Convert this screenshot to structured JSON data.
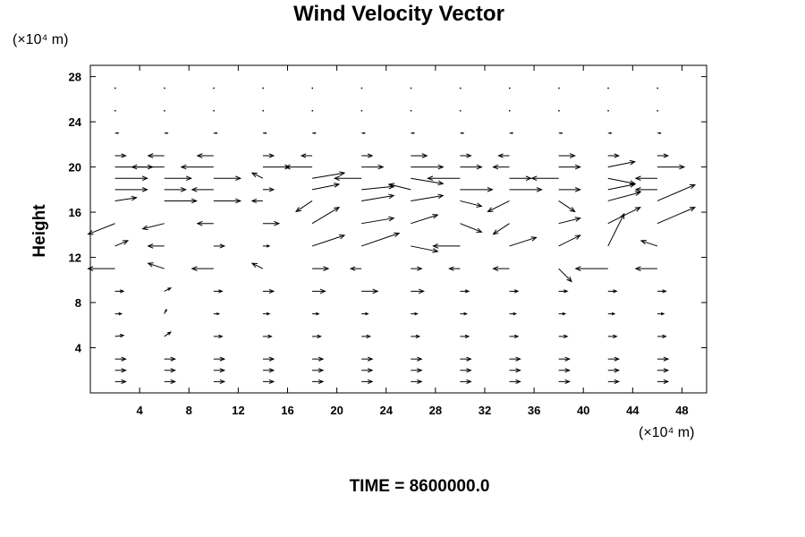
{
  "chart_data": {
    "type": "vector-field",
    "title": "Wind Velocity Vector",
    "xlabel": "",
    "ylabel": "Height",
    "x_unit_label": "(×10⁴ m)",
    "y_unit_label": "(×10⁴ m)",
    "xlim": [
      0,
      50
    ],
    "ylim": [
      0,
      29
    ],
    "x_ticks": [
      4,
      8,
      12,
      16,
      20,
      24,
      28,
      32,
      36,
      40,
      44,
      48
    ],
    "y_ticks": [
      4,
      8,
      12,
      16,
      20,
      24,
      28
    ],
    "x_tick_labels": [
      "4",
      "8",
      "12",
      "16",
      "20",
      "24",
      "28",
      "32",
      "36",
      "40",
      "44",
      "48"
    ],
    "y_tick_labels": [
      "4",
      "8",
      "12",
      "16",
      "20",
      "24",
      "28"
    ],
    "grid": false,
    "footer": "TIME = 8600000.0",
    "vectors": [
      {
        "x": 2,
        "y": 1,
        "u": 1.0,
        "v": 0
      },
      {
        "x": 6,
        "y": 1,
        "u": 1.0,
        "v": 0
      },
      {
        "x": 10,
        "y": 1,
        "u": 1.0,
        "v": 0
      },
      {
        "x": 14,
        "y": 1,
        "u": 1.0,
        "v": 0
      },
      {
        "x": 18,
        "y": 1,
        "u": 1.0,
        "v": 0
      },
      {
        "x": 22,
        "y": 1,
        "u": 1.0,
        "v": 0
      },
      {
        "x": 26,
        "y": 1,
        "u": 1.0,
        "v": 0
      },
      {
        "x": 30,
        "y": 1,
        "u": 1.0,
        "v": 0
      },
      {
        "x": 34,
        "y": 1,
        "u": 1.0,
        "v": 0
      },
      {
        "x": 38,
        "y": 1,
        "u": 1.0,
        "v": 0
      },
      {
        "x": 42,
        "y": 1,
        "u": 1.0,
        "v": 0
      },
      {
        "x": 46,
        "y": 1,
        "u": 1.0,
        "v": 0
      },
      {
        "x": 2,
        "y": 2,
        "u": 1.0,
        "v": 0
      },
      {
        "x": 6,
        "y": 2,
        "u": 1.0,
        "v": 0
      },
      {
        "x": 10,
        "y": 2,
        "u": 1.0,
        "v": 0
      },
      {
        "x": 14,
        "y": 2,
        "u": 1.0,
        "v": 0
      },
      {
        "x": 18,
        "y": 2,
        "u": 1.0,
        "v": 0
      },
      {
        "x": 22,
        "y": 2,
        "u": 1.0,
        "v": 0
      },
      {
        "x": 26,
        "y": 2,
        "u": 1.0,
        "v": 0
      },
      {
        "x": 30,
        "y": 2,
        "u": 1.0,
        "v": 0
      },
      {
        "x": 34,
        "y": 2,
        "u": 1.0,
        "v": 0
      },
      {
        "x": 38,
        "y": 2,
        "u": 1.0,
        "v": 0
      },
      {
        "x": 42,
        "y": 2,
        "u": 1.0,
        "v": 0
      },
      {
        "x": 46,
        "y": 2,
        "u": 1.0,
        "v": 0
      },
      {
        "x": 2,
        "y": 3,
        "u": 1.0,
        "v": 0
      },
      {
        "x": 6,
        "y": 3,
        "u": 1.0,
        "v": 0
      },
      {
        "x": 10,
        "y": 3,
        "u": 1.0,
        "v": 0
      },
      {
        "x": 14,
        "y": 3,
        "u": 1.0,
        "v": 0
      },
      {
        "x": 18,
        "y": 3,
        "u": 1.0,
        "v": 0
      },
      {
        "x": 22,
        "y": 3,
        "u": 1.0,
        "v": 0
      },
      {
        "x": 26,
        "y": 3,
        "u": 1.0,
        "v": 0
      },
      {
        "x": 30,
        "y": 3,
        "u": 1.0,
        "v": 0
      },
      {
        "x": 34,
        "y": 3,
        "u": 1.0,
        "v": 0
      },
      {
        "x": 38,
        "y": 3,
        "u": 1.0,
        "v": 0
      },
      {
        "x": 42,
        "y": 3,
        "u": 1.0,
        "v": 0
      },
      {
        "x": 46,
        "y": 3,
        "u": 1.0,
        "v": 0
      },
      {
        "x": 2,
        "y": 5,
        "u": 0.8,
        "v": 0.1
      },
      {
        "x": 6,
        "y": 5,
        "u": 0.6,
        "v": 0.4
      },
      {
        "x": 10,
        "y": 5,
        "u": 0.8,
        "v": 0
      },
      {
        "x": 14,
        "y": 5,
        "u": 0.8,
        "v": 0
      },
      {
        "x": 18,
        "y": 5,
        "u": 0.8,
        "v": 0
      },
      {
        "x": 22,
        "y": 5,
        "u": 0.8,
        "v": 0
      },
      {
        "x": 26,
        "y": 5,
        "u": 0.8,
        "v": 0
      },
      {
        "x": 30,
        "y": 5,
        "u": 0.8,
        "v": 0
      },
      {
        "x": 34,
        "y": 5,
        "u": 0.8,
        "v": 0
      },
      {
        "x": 38,
        "y": 5,
        "u": 0.8,
        "v": 0
      },
      {
        "x": 42,
        "y": 5,
        "u": 0.8,
        "v": 0
      },
      {
        "x": 46,
        "y": 5,
        "u": 0.8,
        "v": 0
      },
      {
        "x": 2,
        "y": 7,
        "u": 0.6,
        "v": 0
      },
      {
        "x": 6,
        "y": 7,
        "u": 0.2,
        "v": 0.4
      },
      {
        "x": 10,
        "y": 7,
        "u": 0.5,
        "v": 0
      },
      {
        "x": 14,
        "y": 7,
        "u": 0.6,
        "v": 0
      },
      {
        "x": 18,
        "y": 7,
        "u": 0.6,
        "v": 0
      },
      {
        "x": 22,
        "y": 7,
        "u": 0.6,
        "v": 0
      },
      {
        "x": 26,
        "y": 7,
        "u": 0.6,
        "v": 0
      },
      {
        "x": 30,
        "y": 7,
        "u": 0.6,
        "v": 0
      },
      {
        "x": 34,
        "y": 7,
        "u": 0.6,
        "v": 0
      },
      {
        "x": 38,
        "y": 7,
        "u": 0.6,
        "v": 0
      },
      {
        "x": 42,
        "y": 7,
        "u": 0.6,
        "v": 0
      },
      {
        "x": 46,
        "y": 7,
        "u": 0.6,
        "v": 0
      },
      {
        "x": 2,
        "y": 9,
        "u": 0.8,
        "v": 0
      },
      {
        "x": 6,
        "y": 9,
        "u": 0.6,
        "v": 0.3
      },
      {
        "x": 10,
        "y": 9,
        "u": 0.8,
        "v": 0
      },
      {
        "x": 14,
        "y": 9,
        "u": 1.0,
        "v": 0
      },
      {
        "x": 18,
        "y": 9,
        "u": 1.2,
        "v": 0
      },
      {
        "x": 22,
        "y": 9,
        "u": 1.5,
        "v": 0
      },
      {
        "x": 26,
        "y": 9,
        "u": 1.2,
        "v": 0
      },
      {
        "x": 30,
        "y": 9,
        "u": 0.8,
        "v": 0
      },
      {
        "x": 34,
        "y": 9,
        "u": 0.8,
        "v": 0
      },
      {
        "x": 38,
        "y": 9,
        "u": 0.8,
        "v": 0
      },
      {
        "x": 42,
        "y": 9,
        "u": 0.8,
        "v": 0
      },
      {
        "x": 46,
        "y": 9,
        "u": 0.8,
        "v": 0
      },
      {
        "x": 2,
        "y": 11,
        "u": -2.5,
        "v": 0
      },
      {
        "x": 6,
        "y": 11,
        "u": -1.5,
        "v": 0.5
      },
      {
        "x": 10,
        "y": 11,
        "u": -2.0,
        "v": 0
      },
      {
        "x": 14,
        "y": 11,
        "u": -1.0,
        "v": 0.5
      },
      {
        "x": 18,
        "y": 11,
        "u": 1.5,
        "v": 0
      },
      {
        "x": 22,
        "y": 11,
        "u": -1.0,
        "v": 0
      },
      {
        "x": 26,
        "y": 11,
        "u": 1.0,
        "v": 0
      },
      {
        "x": 30,
        "y": 11,
        "u": -1.0,
        "v": 0
      },
      {
        "x": 34,
        "y": 11,
        "u": -1.5,
        "v": 0
      },
      {
        "x": 38,
        "y": 11,
        "u": 1.2,
        "v": -1.2
      },
      {
        "x": 42,
        "y": 11,
        "u": -3.0,
        "v": 0
      },
      {
        "x": 46,
        "y": 11,
        "u": -2.0,
        "v": 0
      },
      {
        "x": 2,
        "y": 13,
        "u": 1.2,
        "v": 0.5
      },
      {
        "x": 6,
        "y": 13,
        "u": -1.5,
        "v": 0
      },
      {
        "x": 10,
        "y": 13,
        "u": 1.0,
        "v": 0
      },
      {
        "x": 14,
        "y": 13,
        "u": 0.6,
        "v": 0
      },
      {
        "x": 18,
        "y": 13,
        "u": 3.0,
        "v": 1.0
      },
      {
        "x": 22,
        "y": 13,
        "u": 3.5,
        "v": 1.2
      },
      {
        "x": 26,
        "y": 13,
        "u": 2.5,
        "v": -0.5
      },
      {
        "x": 30,
        "y": 13,
        "u": -2.5,
        "v": 0
      },
      {
        "x": 34,
        "y": 13,
        "u": 2.5,
        "v": 0.8
      },
      {
        "x": 38,
        "y": 13,
        "u": 2.0,
        "v": 1.0
      },
      {
        "x": 42,
        "y": 13,
        "u": 1.5,
        "v": 3.0
      },
      {
        "x": 46,
        "y": 13,
        "u": -1.5,
        "v": 0.5
      },
      {
        "x": 2,
        "y": 15,
        "u": -2.5,
        "v": -1.0
      },
      {
        "x": 6,
        "y": 15,
        "u": -2.0,
        "v": -0.5
      },
      {
        "x": 10,
        "y": 15,
        "u": -1.5,
        "v": 0
      },
      {
        "x": 14,
        "y": 15,
        "u": 1.5,
        "v": 0
      },
      {
        "x": 18,
        "y": 15,
        "u": 2.5,
        "v": 1.5
      },
      {
        "x": 22,
        "y": 15,
        "u": 3.0,
        "v": 0.5
      },
      {
        "x": 26,
        "y": 15,
        "u": 2.5,
        "v": 0.8
      },
      {
        "x": 30,
        "y": 15,
        "u": 2.0,
        "v": -0.8
      },
      {
        "x": 34,
        "y": 15,
        "u": -1.5,
        "v": -1.0
      },
      {
        "x": 38,
        "y": 15,
        "u": 2.0,
        "v": 0.5
      },
      {
        "x": 42,
        "y": 15,
        "u": 3.0,
        "v": 1.5
      },
      {
        "x": 46,
        "y": 15,
        "u": 3.5,
        "v": 1.5
      },
      {
        "x": 2,
        "y": 17,
        "u": 2.0,
        "v": 0.3
      },
      {
        "x": 6,
        "y": 17,
        "u": 3.0,
        "v": 0
      },
      {
        "x": 10,
        "y": 17,
        "u": 2.5,
        "v": 0
      },
      {
        "x": 14,
        "y": 17,
        "u": -1.0,
        "v": 0
      },
      {
        "x": 18,
        "y": 17,
        "u": -1.5,
        "v": -1.0
      },
      {
        "x": 22,
        "y": 17,
        "u": 3.0,
        "v": 0.5
      },
      {
        "x": 26,
        "y": 17,
        "u": 3.0,
        "v": 0.5
      },
      {
        "x": 30,
        "y": 17,
        "u": 2.0,
        "v": -0.5
      },
      {
        "x": 34,
        "y": 17,
        "u": -2.0,
        "v": -1.0
      },
      {
        "x": 38,
        "y": 17,
        "u": 1.5,
        "v": -1.0
      },
      {
        "x": 42,
        "y": 17,
        "u": 3.0,
        "v": 0.8
      },
      {
        "x": 46,
        "y": 17,
        "u": 3.5,
        "v": 1.5
      },
      {
        "x": 2,
        "y": 18,
        "u": 3.0,
        "v": 0
      },
      {
        "x": 6,
        "y": 18,
        "u": 2.0,
        "v": 0
      },
      {
        "x": 10,
        "y": 18,
        "u": -2.0,
        "v": 0
      },
      {
        "x": 14,
        "y": 18,
        "u": 1.0,
        "v": 0
      },
      {
        "x": 18,
        "y": 18,
        "u": 2.5,
        "v": 0.5
      },
      {
        "x": 22,
        "y": 18,
        "u": 3.0,
        "v": 0.3
      },
      {
        "x": 26,
        "y": 18,
        "u": -2.0,
        "v": 0.5
      },
      {
        "x": 30,
        "y": 18,
        "u": 3.0,
        "v": 0
      },
      {
        "x": 34,
        "y": 18,
        "u": 3.0,
        "v": 0
      },
      {
        "x": 38,
        "y": 18,
        "u": 2.0,
        "v": 0
      },
      {
        "x": 42,
        "y": 18,
        "u": 2.5,
        "v": 0.5
      },
      {
        "x": 46,
        "y": 18,
        "u": -2.0,
        "v": 0
      },
      {
        "x": 2,
        "y": 19,
        "u": 3.0,
        "v": 0
      },
      {
        "x": 6,
        "y": 19,
        "u": 2.5,
        "v": 0
      },
      {
        "x": 10,
        "y": 19,
        "u": 2.5,
        "v": 0
      },
      {
        "x": 14,
        "y": 19,
        "u": -1.0,
        "v": 0.5
      },
      {
        "x": 18,
        "y": 19,
        "u": 3.0,
        "v": 0.5
      },
      {
        "x": 22,
        "y": 19,
        "u": -2.5,
        "v": 0
      },
      {
        "x": 26,
        "y": 19,
        "u": 3.0,
        "v": -0.5
      },
      {
        "x": 30,
        "y": 19,
        "u": -3.0,
        "v": 0
      },
      {
        "x": 34,
        "y": 19,
        "u": 2.0,
        "v": 0
      },
      {
        "x": 38,
        "y": 19,
        "u": -2.5,
        "v": 0
      },
      {
        "x": 42,
        "y": 19,
        "u": 2.5,
        "v": -0.5
      },
      {
        "x": 46,
        "y": 19,
        "u": -2.0,
        "v": 0
      },
      {
        "x": 2,
        "y": 20,
        "u": 3.5,
        "v": 0
      },
      {
        "x": 6,
        "y": 20,
        "u": -3.0,
        "v": 0
      },
      {
        "x": 10,
        "y": 20,
        "u": -3.0,
        "v": 0
      },
      {
        "x": 14,
        "y": 20,
        "u": 2.5,
        "v": 0
      },
      {
        "x": 18,
        "y": 20,
        "u": -2.5,
        "v": 0
      },
      {
        "x": 22,
        "y": 20,
        "u": 2.0,
        "v": 0
      },
      {
        "x": 26,
        "y": 20,
        "u": 3.0,
        "v": 0
      },
      {
        "x": 30,
        "y": 20,
        "u": 2.0,
        "v": 0
      },
      {
        "x": 34,
        "y": 20,
        "u": -1.5,
        "v": 0
      },
      {
        "x": 38,
        "y": 20,
        "u": 2.0,
        "v": 0
      },
      {
        "x": 42,
        "y": 20,
        "u": 2.5,
        "v": 0.5
      },
      {
        "x": 46,
        "y": 20,
        "u": 2.5,
        "v": 0
      },
      {
        "x": 2,
        "y": 21,
        "u": 1.0,
        "v": 0
      },
      {
        "x": 6,
        "y": 21,
        "u": -1.5,
        "v": 0
      },
      {
        "x": 10,
        "y": 21,
        "u": -1.5,
        "v": 0
      },
      {
        "x": 14,
        "y": 21,
        "u": 1.0,
        "v": 0
      },
      {
        "x": 18,
        "y": 21,
        "u": -1.0,
        "v": 0
      },
      {
        "x": 22,
        "y": 21,
        "u": 1.0,
        "v": 0
      },
      {
        "x": 26,
        "y": 21,
        "u": 1.5,
        "v": 0
      },
      {
        "x": 30,
        "y": 21,
        "u": 1.0,
        "v": 0
      },
      {
        "x": 34,
        "y": 21,
        "u": -1.0,
        "v": 0
      },
      {
        "x": 38,
        "y": 21,
        "u": 1.5,
        "v": 0
      },
      {
        "x": 42,
        "y": 21,
        "u": 1.0,
        "v": 0
      },
      {
        "x": 46,
        "y": 21,
        "u": 1.0,
        "v": 0
      },
      {
        "x": 2,
        "y": 23,
        "u": 0.3,
        "v": 0
      },
      {
        "x": 6,
        "y": 23,
        "u": 0.3,
        "v": 0
      },
      {
        "x": 10,
        "y": 23,
        "u": 0.3,
        "v": 0
      },
      {
        "x": 14,
        "y": 23,
        "u": 0.3,
        "v": 0
      },
      {
        "x": 18,
        "y": 23,
        "u": 0.3,
        "v": 0
      },
      {
        "x": 22,
        "y": 23,
        "u": 0.3,
        "v": 0
      },
      {
        "x": 26,
        "y": 23,
        "u": 0.3,
        "v": 0
      },
      {
        "x": 30,
        "y": 23,
        "u": 0.3,
        "v": 0
      },
      {
        "x": 34,
        "y": 23,
        "u": 0.3,
        "v": 0
      },
      {
        "x": 38,
        "y": 23,
        "u": 0.3,
        "v": 0
      },
      {
        "x": 42,
        "y": 23,
        "u": 0.3,
        "v": 0
      },
      {
        "x": 46,
        "y": 23,
        "u": 0.3,
        "v": 0
      },
      {
        "x": 2,
        "y": 25,
        "u": 0.1,
        "v": 0
      },
      {
        "x": 6,
        "y": 25,
        "u": 0.1,
        "v": 0
      },
      {
        "x": 10,
        "y": 25,
        "u": 0.1,
        "v": 0
      },
      {
        "x": 14,
        "y": 25,
        "u": 0.1,
        "v": 0
      },
      {
        "x": 18,
        "y": 25,
        "u": 0.1,
        "v": 0
      },
      {
        "x": 22,
        "y": 25,
        "u": 0.1,
        "v": 0
      },
      {
        "x": 26,
        "y": 25,
        "u": 0.1,
        "v": 0
      },
      {
        "x": 30,
        "y": 25,
        "u": 0.1,
        "v": 0
      },
      {
        "x": 34,
        "y": 25,
        "u": 0.1,
        "v": 0
      },
      {
        "x": 38,
        "y": 25,
        "u": 0.1,
        "v": 0
      },
      {
        "x": 42,
        "y": 25,
        "u": 0.1,
        "v": 0
      },
      {
        "x": 46,
        "y": 25,
        "u": 0.1,
        "v": 0
      },
      {
        "x": 2,
        "y": 27,
        "u": 0.05,
        "v": 0
      },
      {
        "x": 6,
        "y": 27,
        "u": 0.05,
        "v": 0
      },
      {
        "x": 10,
        "y": 27,
        "u": 0.05,
        "v": 0
      },
      {
        "x": 14,
        "y": 27,
        "u": 0.05,
        "v": 0
      },
      {
        "x": 18,
        "y": 27,
        "u": 0.05,
        "v": 0
      },
      {
        "x": 22,
        "y": 27,
        "u": 0.05,
        "v": 0
      },
      {
        "x": 26,
        "y": 27,
        "u": 0.05,
        "v": 0
      },
      {
        "x": 30,
        "y": 27,
        "u": 0.05,
        "v": 0
      },
      {
        "x": 34,
        "y": 27,
        "u": 0.05,
        "v": 0
      },
      {
        "x": 38,
        "y": 27,
        "u": 0.05,
        "v": 0
      },
      {
        "x": 42,
        "y": 27,
        "u": 0.05,
        "v": 0
      },
      {
        "x": 46,
        "y": 27,
        "u": 0.05,
        "v": 0
      }
    ]
  }
}
